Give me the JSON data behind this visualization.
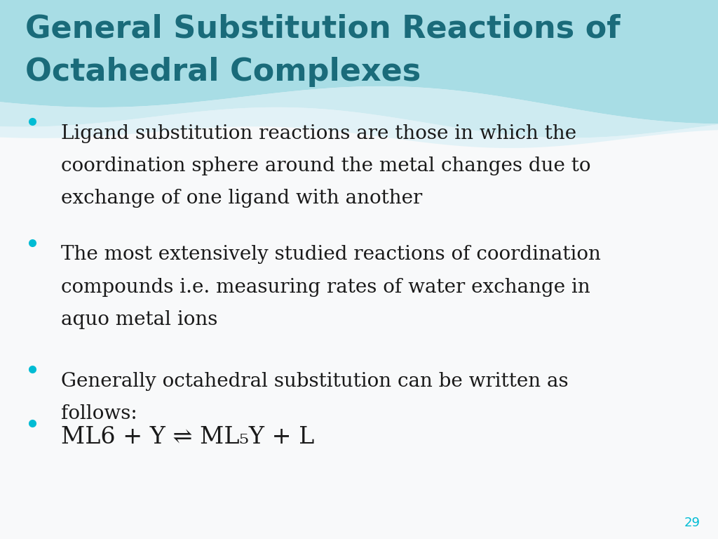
{
  "title_line1": "General Substitution Reactions of",
  "title_line2": "Octahedral Complexes",
  "title_color": "#1a6b7a",
  "bullet_color": "#00bcd4",
  "text_color": "#1a1a1a",
  "background_color": "#f8f9fa",
  "page_number": "29",
  "page_number_color": "#00bcd4",
  "bullets": [
    {
      "lines": [
        "Ligand substitution reactions are those in which the",
        "coordination sphere around the metal changes due to",
        "exchange of one ligand with another"
      ]
    },
    {
      "lines": [
        "The most extensively studied reactions of coordination",
        "compounds i.e. measuring rates of water exchange in",
        "aquo metal ions"
      ]
    },
    {
      "lines": [
        "Generally octahedral substitution can be written as",
        "follows:"
      ]
    },
    {
      "lines": [
        "ML6 + Y ⇌ ML₅Y + L"
      ],
      "special_font": true
    }
  ],
  "title_font_size": 32,
  "body_font_size": 20,
  "equation_font_size": 24,
  "page_number_font_size": 13
}
